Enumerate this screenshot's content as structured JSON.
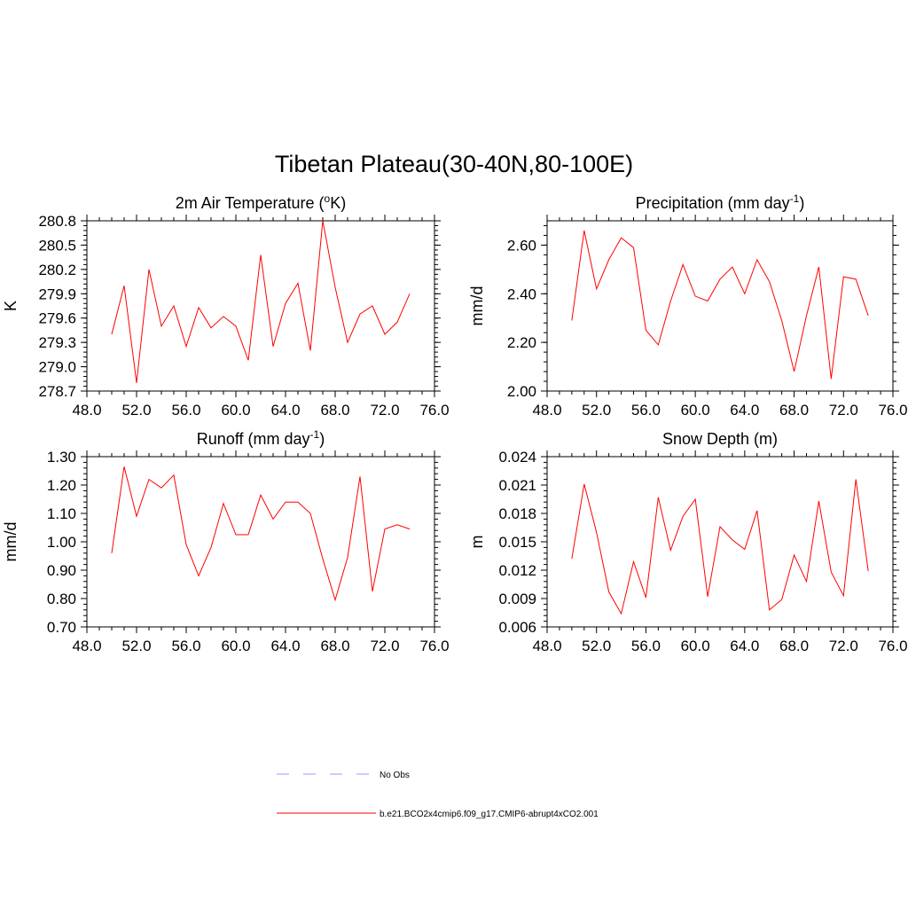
{
  "title": "Tibetan Plateau(30-40N,80-100E)",
  "colors": {
    "model": "#ff0000",
    "obs": "#9999ff"
  },
  "legend": {
    "items": [
      {
        "label": "No Obs",
        "style": "dashed",
        "color": "#9999ff"
      },
      {
        "label": "b.e21.BCO2x4cmip6.f09_g17.CMIP6-abrupt4xCO2.001",
        "style": "solid",
        "color": "#ff0000"
      }
    ]
  },
  "chart_data": [
    {
      "type": "line",
      "title": "2m Air Temperature (",
      "title_sup": "o",
      "title_suffix": "K)",
      "ylabel": "K",
      "xlim": [
        48,
        76
      ],
      "ylim": [
        278.7,
        280.8
      ],
      "xticks": [
        "48.0",
        "52.0",
        "56.0",
        "60.0",
        "64.0",
        "68.0",
        "72.0",
        "76.0"
      ],
      "yticks": [
        "278.7",
        "279.0",
        "279.3",
        "279.6",
        "279.9",
        "280.2",
        "280.5",
        "280.8"
      ],
      "series": [
        {
          "color": "#ff0000",
          "x": [
            50,
            51,
            52,
            53,
            54,
            55,
            56,
            57,
            58,
            59,
            60,
            61,
            62,
            63,
            64,
            65,
            66,
            67,
            68,
            69,
            70,
            71,
            72,
            73,
            74
          ],
          "y": [
            279.4,
            280.0,
            278.8,
            280.2,
            279.5,
            279.75,
            279.25,
            279.73,
            279.48,
            279.62,
            279.5,
            279.08,
            280.38,
            279.25,
            279.78,
            280.03,
            279.2,
            280.8,
            279.98,
            279.3,
            279.65,
            279.75,
            279.4,
            279.55,
            279.9
          ]
        }
      ]
    },
    {
      "type": "line",
      "title": "Precipitation (mm day",
      "title_sup": "-1",
      "title_suffix": ")",
      "ylabel": "mm/d",
      "xlim": [
        48,
        76
      ],
      "ylim": [
        2.0,
        2.7
      ],
      "xticks": [
        "48.0",
        "52.0",
        "56.0",
        "60.0",
        "64.0",
        "68.0",
        "72.0",
        "76.0"
      ],
      "yticks": [
        "2.00",
        "2.20",
        "2.40",
        "2.60"
      ],
      "series": [
        {
          "color": "#ff0000",
          "x": [
            50,
            51,
            52,
            53,
            54,
            55,
            56,
            57,
            58,
            59,
            60,
            61,
            62,
            63,
            64,
            65,
            66,
            67,
            68,
            69,
            70,
            71,
            72,
            73,
            74
          ],
          "y": [
            2.29,
            2.66,
            2.42,
            2.54,
            2.63,
            2.59,
            2.25,
            2.19,
            2.37,
            2.52,
            2.39,
            2.37,
            2.46,
            2.51,
            2.4,
            2.54,
            2.45,
            2.29,
            2.08,
            2.31,
            2.51,
            2.05,
            2.47,
            2.46,
            2.31
          ]
        }
      ]
    },
    {
      "type": "line",
      "title": "Runoff (mm day",
      "title_sup": "-1",
      "title_suffix": ")",
      "ylabel": "mm/d",
      "xlim": [
        48,
        76
      ],
      "ylim": [
        0.7,
        1.3
      ],
      "xticks": [
        "48.0",
        "52.0",
        "56.0",
        "60.0",
        "64.0",
        "68.0",
        "72.0",
        "76.0"
      ],
      "yticks": [
        "0.70",
        "0.80",
        "0.90",
        "1.00",
        "1.10",
        "1.20",
        "1.30"
      ],
      "series": [
        {
          "color": "#ff0000",
          "x": [
            50,
            51,
            52,
            53,
            54,
            55,
            56,
            57,
            58,
            59,
            60,
            61,
            62,
            63,
            64,
            65,
            66,
            67,
            68,
            69,
            70,
            71,
            72,
            73,
            74
          ],
          "y": [
            0.96,
            1.265,
            1.09,
            1.22,
            1.19,
            1.235,
            0.99,
            0.88,
            0.98,
            1.135,
            1.025,
            1.025,
            1.165,
            1.08,
            1.14,
            1.14,
            1.1,
            0.94,
            0.795,
            0.945,
            1.23,
            0.825,
            1.045,
            1.06,
            1.045
          ]
        }
      ]
    },
    {
      "type": "line",
      "title": "Snow Depth (m)",
      "title_sup": "",
      "title_suffix": "",
      "ylabel": "m",
      "xlim": [
        48,
        76
      ],
      "ylim": [
        0.006,
        0.024
      ],
      "xticks": [
        "48.0",
        "52.0",
        "56.0",
        "60.0",
        "64.0",
        "68.0",
        "72.0",
        "76.0"
      ],
      "yticks": [
        "0.006",
        "0.009",
        "0.012",
        "0.015",
        "0.018",
        "0.021",
        "0.024"
      ],
      "series": [
        {
          "color": "#ff0000",
          "x": [
            50,
            51,
            52,
            53,
            54,
            55,
            56,
            57,
            58,
            59,
            60,
            61,
            62,
            63,
            64,
            65,
            66,
            67,
            68,
            69,
            70,
            71,
            72,
            73,
            74
          ],
          "y": [
            0.0132,
            0.0211,
            0.016,
            0.0097,
            0.0074,
            0.0129,
            0.0091,
            0.0197,
            0.0141,
            0.0177,
            0.0195,
            0.0092,
            0.0166,
            0.0152,
            0.0142,
            0.0183,
            0.0078,
            0.0089,
            0.0136,
            0.0108,
            0.0193,
            0.0118,
            0.0093,
            0.0216,
            0.0119
          ]
        }
      ]
    }
  ]
}
